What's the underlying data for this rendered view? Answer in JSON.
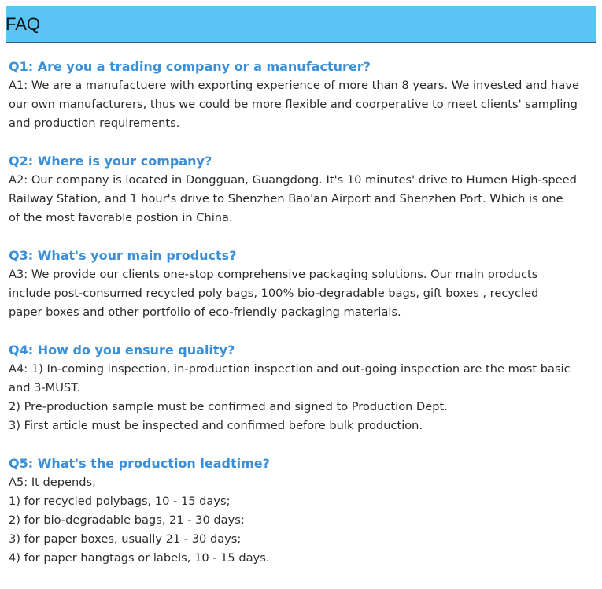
{
  "header": {
    "title": "FAQ"
  },
  "colors": {
    "header_bg": "#5bc4f7",
    "question": "#3a8fd8",
    "text": "#2b2b2b"
  },
  "faq": [
    {
      "question": "Q1: Are you a trading company or a manufacturer?",
      "answer_lines": [
        "A1: We are a manufactuere with exporting experience of more than 8 years. We invested and have",
        "our own manufacturers, thus we could be more flexible and coorperative to meet clients' sampling",
        "and production requirements."
      ]
    },
    {
      "question": "Q2: Where is your company?",
      "answer_lines": [
        "A2: Our company is located in Dongguan, Guangdong. It's 10 minutes' drive to Humen High-speed",
        "Railway Station, and 1 hour's drive to Shenzhen Bao'an Airport and Shenzhen Port. Which is one",
        "of the most favorable postion in China."
      ]
    },
    {
      "question": "Q3: What's your main products?",
      "answer_lines": [
        "A3: We provide our clients one-stop comprehensive packaging solutions. Our main products",
        "include post-consumed recycled poly bags, 100% bio-degradable bags, gift boxes , recycled",
        "paper boxes and other portfolio of eco-friendly packaging materials."
      ]
    },
    {
      "question": "Q4: How do you ensure quality?",
      "answer_lines": [
        "A4: 1) In-coming inspection, in-production inspection and out-going inspection are the most basic",
        "and 3-MUST.",
        "2) Pre-production sample must be confirmed and signed to Production Dept.",
        "3) First article must be inspected and confirmed before bulk production."
      ]
    },
    {
      "question": "Q5: What's the production leadtime?",
      "answer_lines": [
        "A5: It depends,",
        "1) for recycled polybags, 10 - 15 days;",
        "2) for bio-degradable bags, 21 - 30 days;",
        "3) for paper boxes, usually 21 - 30 days;",
        "4) for paper hangtags or labels, 10 - 15 days."
      ]
    }
  ]
}
